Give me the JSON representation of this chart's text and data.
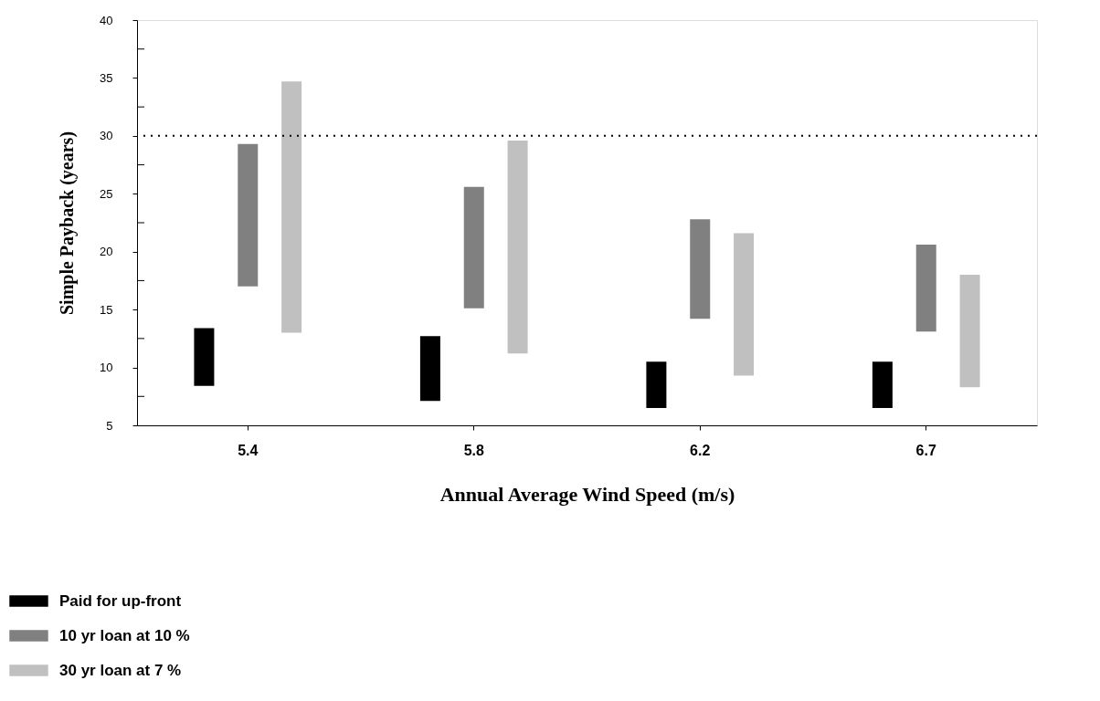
{
  "chart_data": {
    "type": "bar",
    "xlabel": "Annual Average Wind Speed (m/s)",
    "ylabel": "Simple Payback (years)",
    "categories": [
      "5.4",
      "5.8",
      "6.2",
      "6.7"
    ],
    "series": [
      {
        "name": "Paid for up-front",
        "color": "#000000",
        "base": [
          8.4,
          7.1,
          6.5,
          6.5
        ],
        "values": [
          5.0,
          5.6,
          4.0,
          4.0
        ]
      },
      {
        "name": "10 yr loan at 10 %",
        "color": "#808080",
        "base": [
          17.0,
          15.1,
          14.2,
          13.1
        ],
        "values": [
          12.3,
          10.5,
          8.6,
          7.5
        ]
      },
      {
        "name": "30 yr loan at 7 %",
        "color": "#c0c0c0",
        "base": [
          13.0,
          11.2,
          9.3,
          8.3
        ],
        "values": [
          21.7,
          18.4,
          12.3,
          9.7
        ]
      }
    ],
    "ylim": [
      5,
      40
    ],
    "yticks": [
      5,
      {
        "value": 7.5,
        "label": null
      },
      10,
      {
        "value": 12.5,
        "label": null
      },
      15,
      {
        "value": 17.5,
        "label": null
      },
      20,
      {
        "value": 22.5,
        "label": null
      },
      25,
      {
        "value": 27.5,
        "label": null
      },
      30,
      {
        "value": 32.5,
        "label": null
      },
      35,
      {
        "value": 37.5,
        "label": null
      },
      40
    ],
    "ref_lines": [
      {
        "axis": "y",
        "value": 30,
        "line_style": "dotted"
      }
    ],
    "grid": false,
    "legend": "bottom left"
  }
}
